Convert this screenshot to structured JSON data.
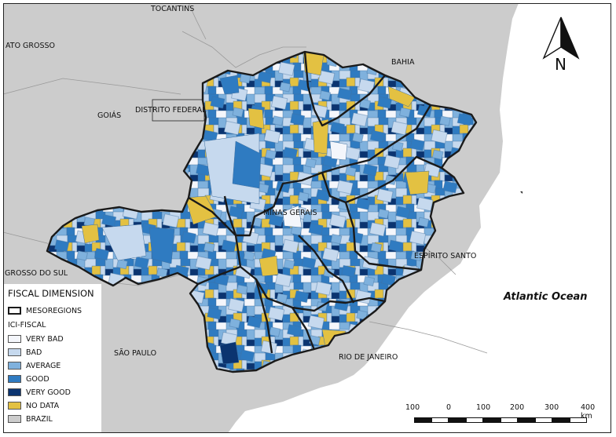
{
  "colors": {
    "background": "#ffffff",
    "brazil": "#cccccc",
    "ocean": "#ffffff",
    "very_bad": "#f4f6fb",
    "bad": "#c6d9ee",
    "average": "#7fb1dd",
    "good": "#2f7bc1",
    "very_good": "#0b3470",
    "no_data": "#e3c142",
    "mesoregion_border": "#1a1a1a"
  },
  "labels": {
    "tocantins": "TOCANTINS",
    "mato_grosso": "ATO GROSSO",
    "bahia": "BAHIA",
    "goias": "GOIÁS",
    "distrito_federal": "DISTRITO FEDERAL",
    "minas_gerais": "MINAS GERAIS",
    "espirito_santo": "ESPÍRITO SANTO",
    "mato_grosso_do_sul": "GROSSO DO SUL",
    "sao_paulo": "SÃO PAULO",
    "rio_de_janeiro": "RIO DE JANEIRO",
    "ocean": "Atlantic Ocean"
  },
  "north_arrow": {
    "letter": "N",
    "icon": "north-arrow-icon"
  },
  "legend": {
    "title": "FISCAL DIMENSION",
    "mesoregions": "MESOREGIONS",
    "index_title": "ICI-FISCAL",
    "items": [
      {
        "label": "VERY BAD",
        "color": "#f4f6fb"
      },
      {
        "label": "BAD",
        "color": "#c6d9ee"
      },
      {
        "label": "AVERAGE",
        "color": "#7fb1dd"
      },
      {
        "label": "GOOD",
        "color": "#2f7bc1"
      },
      {
        "label": "VERY GOOD",
        "color": "#0b3470"
      },
      {
        "label": "NO DATA",
        "color": "#e3c142"
      },
      {
        "label": "BRAZIL",
        "color": "#cccccc"
      }
    ]
  },
  "scale_bar": {
    "ticks": [
      "100",
      "0",
      "100",
      "200",
      "300",
      "400 km"
    ]
  }
}
